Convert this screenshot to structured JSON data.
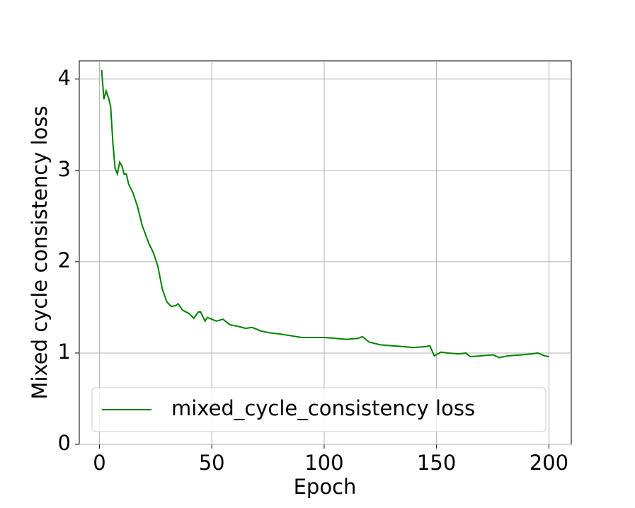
{
  "chart_data": {
    "type": "line",
    "xlabel": "Epoch",
    "ylabel": "Mixed cycle consistency loss",
    "x": [
      1,
      2,
      3,
      4,
      5,
      6,
      7,
      8,
      9,
      10,
      11,
      12,
      13,
      15,
      17,
      19,
      22,
      24,
      26,
      28,
      30,
      32,
      34,
      35,
      37,
      40,
      42,
      44,
      45,
      47,
      48,
      52,
      55,
      58,
      62,
      65,
      68,
      72,
      76,
      80,
      85,
      90,
      95,
      100,
      105,
      110,
      115,
      117,
      120,
      125,
      130,
      135,
      140,
      145,
      147,
      149,
      152,
      155,
      160,
      163,
      165,
      170,
      175,
      178,
      182,
      188,
      192,
      195,
      198,
      200
    ],
    "series": [
      {
        "name": "mixed_cycle_consistency loss",
        "color": "#008000",
        "values": [
          4.1,
          3.78,
          3.87,
          3.8,
          3.7,
          3.3,
          3.02,
          2.96,
          3.09,
          3.05,
          2.96,
          2.96,
          2.85,
          2.75,
          2.6,
          2.4,
          2.2,
          2.1,
          1.95,
          1.7,
          1.56,
          1.51,
          1.52,
          1.54,
          1.47,
          1.43,
          1.38,
          1.45,
          1.45,
          1.35,
          1.39,
          1.35,
          1.37,
          1.31,
          1.29,
          1.27,
          1.28,
          1.24,
          1.22,
          1.21,
          1.19,
          1.17,
          1.17,
          1.17,
          1.16,
          1.15,
          1.16,
          1.18,
          1.12,
          1.09,
          1.08,
          1.07,
          1.06,
          1.07,
          1.08,
          0.97,
          1.01,
          1.0,
          0.99,
          1.0,
          0.96,
          0.97,
          0.98,
          0.95,
          0.97,
          0.98,
          0.99,
          1.0,
          0.97,
          0.96
        ]
      }
    ],
    "xlim": [
      -8.95,
      209.95
    ],
    "ylim": [
      0,
      4.2
    ],
    "xticks": [
      0,
      50,
      100,
      150,
      200
    ],
    "yticks": [
      0,
      1,
      2,
      3,
      4
    ],
    "grid": true,
    "legend": "lower left"
  }
}
